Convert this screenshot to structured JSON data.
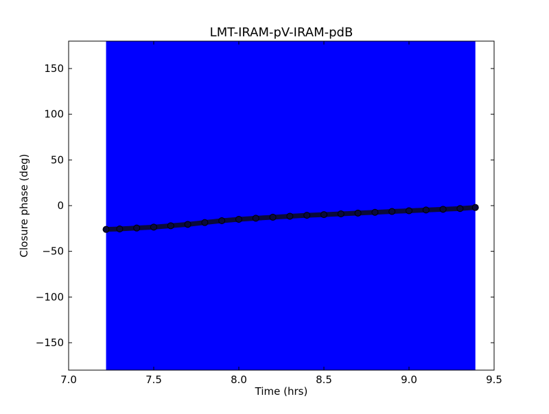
{
  "chart_data": {
    "type": "scatter",
    "title": "LMT-IRAM-pV-IRAM-pdB",
    "xlabel": "Time (hrs)",
    "ylabel": "Closure phase (deg)",
    "xlim": [
      7.0,
      9.5
    ],
    "ylim": [
      -180,
      180
    ],
    "xticks": [
      7.0,
      7.5,
      8.0,
      8.5,
      9.0,
      9.5
    ],
    "xtick_labels": [
      "7.0",
      "7.5",
      "8.0",
      "8.5",
      "9.0",
      "9.5"
    ],
    "yticks": [
      150,
      100,
      50,
      0,
      -50,
      -100,
      -150
    ],
    "ytick_labels": [
      "150",
      "100",
      "50",
      "0",
      "−50",
      "−100",
      "−150"
    ],
    "grid": false,
    "shaded_band": {
      "x_start": 7.22,
      "x_end": 9.39,
      "color": "#0000ff"
    },
    "series": [
      {
        "marker_color": "#0a0a3a",
        "x": [
          7.22,
          7.3,
          7.4,
          7.5,
          7.6,
          7.7,
          7.8,
          7.9,
          8.0,
          8.1,
          8.2,
          8.3,
          8.4,
          8.5,
          8.6,
          8.7,
          8.8,
          8.9,
          9.0,
          9.1,
          9.2,
          9.3,
          9.39
        ],
        "y": [
          -26,
          -25.5,
          -24.5,
          -23.5,
          -22,
          -20.5,
          -18.5,
          -16.5,
          -15,
          -13.8,
          -12.7,
          -11.6,
          -10.6,
          -9.8,
          -9,
          -8.2,
          -7.3,
          -6.4,
          -5.6,
          -4.8,
          -4,
          -3.2,
          -2
        ]
      }
    ]
  }
}
